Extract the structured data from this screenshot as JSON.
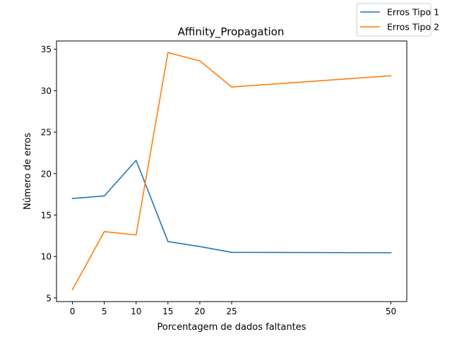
{
  "chart_data": {
    "type": "line",
    "title": "Affinity_Propagation",
    "xlabel": "Porcentagem de dados faltantes",
    "ylabel": "Número de erros",
    "x": [
      0,
      5,
      10,
      15,
      20,
      25,
      50
    ],
    "xticks": [
      0,
      5,
      10,
      15,
      20,
      25,
      50
    ],
    "xlim": [
      -2.5,
      52.5
    ],
    "yticks": [
      5,
      10,
      15,
      20,
      25,
      30,
      35
    ],
    "ylim": [
      4.56,
      36.0
    ],
    "grid": false,
    "legend": "top-right",
    "series": [
      {
        "name": "Erros Tipo 1",
        "color": "#1f77b4",
        "values": [
          17.0,
          17.3,
          21.6,
          11.8,
          11.2,
          10.5,
          10.45
        ]
      },
      {
        "name": "Erros Tipo 2",
        "color": "#ff7f0e",
        "values": [
          6.0,
          13.0,
          12.6,
          34.6,
          33.6,
          30.45,
          31.8
        ]
      }
    ]
  }
}
